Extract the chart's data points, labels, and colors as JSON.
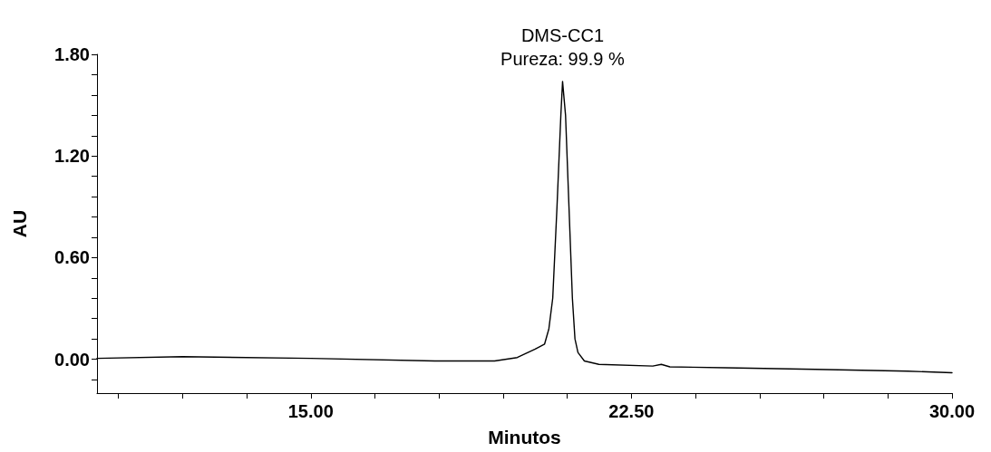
{
  "chart_data": {
    "type": "line",
    "xlabel": "Minutos",
    "ylabel": "AU",
    "annotations": [
      {
        "text": "DMS-CC1",
        "x": 20.89,
        "y": 1.64
      },
      {
        "text": "Pureza: 99.9 %",
        "x": 20.89,
        "y": 1.64
      }
    ],
    "series": [
      {
        "color": "#000000",
        "x": [
          10,
          12,
          15,
          17.9,
          19.3,
          19.83,
          20.25,
          20.47,
          20.57,
          20.66,
          20.76,
          20.85,
          20.89,
          20.96,
          21.04,
          21.12,
          21.18,
          21.25,
          21.4,
          21.74,
          23,
          23.2,
          23.4,
          24.7,
          26.8,
          28.96,
          30
        ],
        "values": [
          0.005,
          0.015,
          0.005,
          -0.01,
          -0.01,
          0.01,
          0.06,
          0.09,
          0.18,
          0.36,
          0.9,
          1.44,
          1.64,
          1.44,
          0.9,
          0.36,
          0.12,
          0.04,
          -0.01,
          -0.03,
          -0.04,
          -0.03,
          -0.045,
          -0.05,
          -0.06,
          -0.07,
          -0.08
        ]
      }
    ],
    "xlim": [
      10,
      30
    ],
    "xticks": [
      {
        "value": 10.5,
        "label": null
      },
      {
        "value": 12,
        "label": null
      },
      {
        "value": 13.5,
        "label": null
      },
      {
        "value": 15,
        "label": "15.00"
      },
      {
        "value": 16.5,
        "label": null
      },
      {
        "value": 18,
        "label": null
      },
      {
        "value": 19.5,
        "label": null
      },
      {
        "value": 21,
        "label": null
      },
      {
        "value": 22.5,
        "label": "22.50"
      },
      {
        "value": 24,
        "label": null
      },
      {
        "value": 25.5,
        "label": null
      },
      {
        "value": 27,
        "label": null
      },
      {
        "value": 28.5,
        "label": null
      },
      {
        "value": 30,
        "label": "30.00"
      }
    ],
    "ylim": [
      -0.2,
      1.8
    ],
    "yticks": [
      {
        "value": -0.12,
        "label": null
      },
      {
        "value": 0,
        "label": "0.00"
      },
      {
        "value": 0.12,
        "label": null
      },
      {
        "value": 0.24,
        "label": null
      },
      {
        "value": 0.36,
        "label": null
      },
      {
        "value": 0.48,
        "label": null
      },
      {
        "value": 0.6,
        "label": "0.60"
      },
      {
        "value": 0.72,
        "label": null
      },
      {
        "value": 0.84,
        "label": null
      },
      {
        "value": 0.96,
        "label": null
      },
      {
        "value": 1.08,
        "label": null
      },
      {
        "value": 1.2,
        "label": "1.20"
      },
      {
        "value": 1.32,
        "label": null
      },
      {
        "value": 1.44,
        "label": null
      },
      {
        "value": 1.56,
        "label": null
      },
      {
        "value": 1.68,
        "label": null
      },
      {
        "value": 1.8,
        "label": "1.80"
      }
    ],
    "grid": false,
    "marker": "none",
    "line_style": "solid"
  }
}
